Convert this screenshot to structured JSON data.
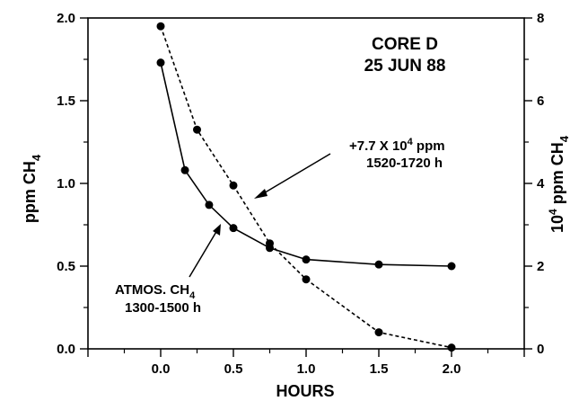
{
  "chart_data": {
    "type": "line",
    "title": "CORE D",
    "subtitle": "25 JUN 88",
    "xlabel": "HOURS",
    "ylabel_left": {
      "base": "ppm CH",
      "sub": "4"
    },
    "ylabel_right": {
      "base": "10",
      "sup": "4",
      "rest": " ppm CH",
      "sub": "4"
    },
    "xlim": [
      -0.5,
      2.5
    ],
    "ylim_left": [
      0,
      2.0
    ],
    "ylim_right": [
      0,
      8
    ],
    "x_ticks": [
      0.0,
      0.5,
      1.0,
      1.5,
      2.0
    ],
    "x_tick_labels": [
      "0.0",
      "0.5",
      "1.0",
      "1.5",
      "2.0"
    ],
    "y_left_ticks": [
      0.0,
      0.5,
      1.0,
      1.5,
      2.0
    ],
    "y_left_tick_labels": [
      "0.0",
      "0.5",
      "1.0",
      "1.5",
      "2.0"
    ],
    "y_right_ticks": [
      0,
      2,
      4,
      6,
      8
    ],
    "y_right_tick_labels": [
      "0",
      "2",
      "4",
      "6",
      "8"
    ],
    "grid": false,
    "series": [
      {
        "axis": "left",
        "style": "solid",
        "label_lines": [
          "ATMOS. CH",
          "1300-1500 h"
        ],
        "label_sub": "4",
        "x": [
          0.0,
          0.167,
          0.333,
          0.5,
          0.75,
          1.0,
          1.5,
          2.0
        ],
        "values": [
          1.73,
          1.08,
          0.87,
          0.73,
          0.61,
          0.54,
          0.51,
          0.5
        ]
      },
      {
        "axis": "right",
        "style": "dashed",
        "label_lines": [
          "+7.7 X 10",
          " ppm",
          "1520-1720 h"
        ],
        "label_sup": "4",
        "x": [
          0.0,
          0.25,
          0.5,
          0.75,
          1.0,
          1.5,
          2.0
        ],
        "values": [
          7.8,
          5.3,
          3.95,
          2.55,
          1.68,
          0.4,
          0.03
        ]
      }
    ]
  }
}
